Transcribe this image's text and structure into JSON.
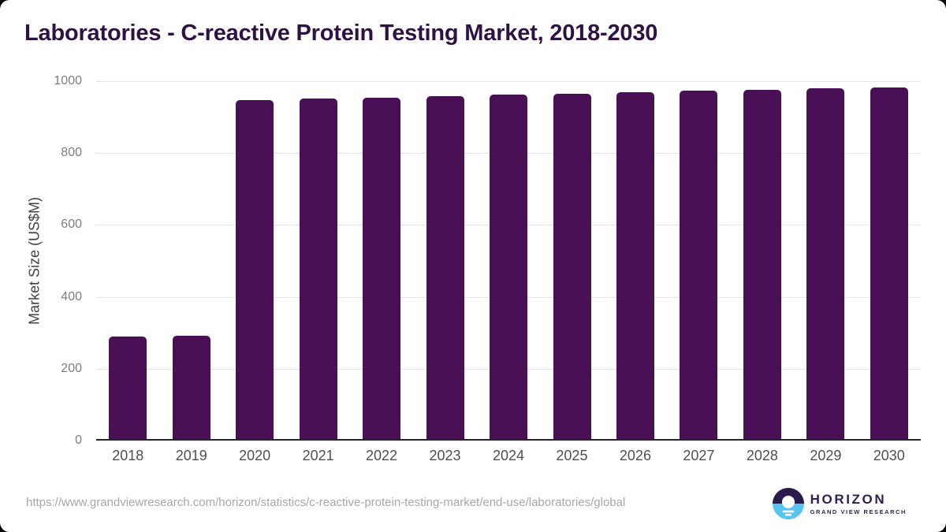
{
  "page": {
    "source_url": "https://www.grandviewresearch.com/horizon/statistics/c-reactive-protein-testing-market/end-use/laboratories/global",
    "logo": {
      "wordmark": "HORIZON",
      "tagline": "GRAND VIEW RESEARCH"
    }
  },
  "colors": {
    "bar": "#4a1056",
    "title": "#2d1244",
    "gridline": "#e4e4e6",
    "axis_line": "#262626",
    "y_tick_label": "#7e7e7e",
    "x_tick_label": "#4f4f4f",
    "y_axis_title": "#414141",
    "url_text": "#a7a7a7",
    "logo_text": "#301f55",
    "logo_top_half": "#2b1a4c",
    "logo_bottom_half": "#58c5f1"
  },
  "chart_data": {
    "type": "bar",
    "title": "Laboratories - C-reactive Protein Testing Market, 2018-2030",
    "categories": [
      "2018",
      "2019",
      "2020",
      "2021",
      "2022",
      "2023",
      "2024",
      "2025",
      "2026",
      "2027",
      "2028",
      "2029",
      "2030"
    ],
    "values": [
      290,
      292,
      947,
      951,
      955,
      959,
      963,
      966,
      970,
      973,
      976,
      980,
      983
    ],
    "xlabel": "",
    "ylabel": "Market Size (US$M)",
    "ylim": [
      0,
      1000
    ],
    "yticks": [
      0,
      200,
      400,
      600,
      800,
      1000
    ],
    "grid": "horizontal",
    "legend": "none",
    "bar_color": "#4a1056"
  }
}
